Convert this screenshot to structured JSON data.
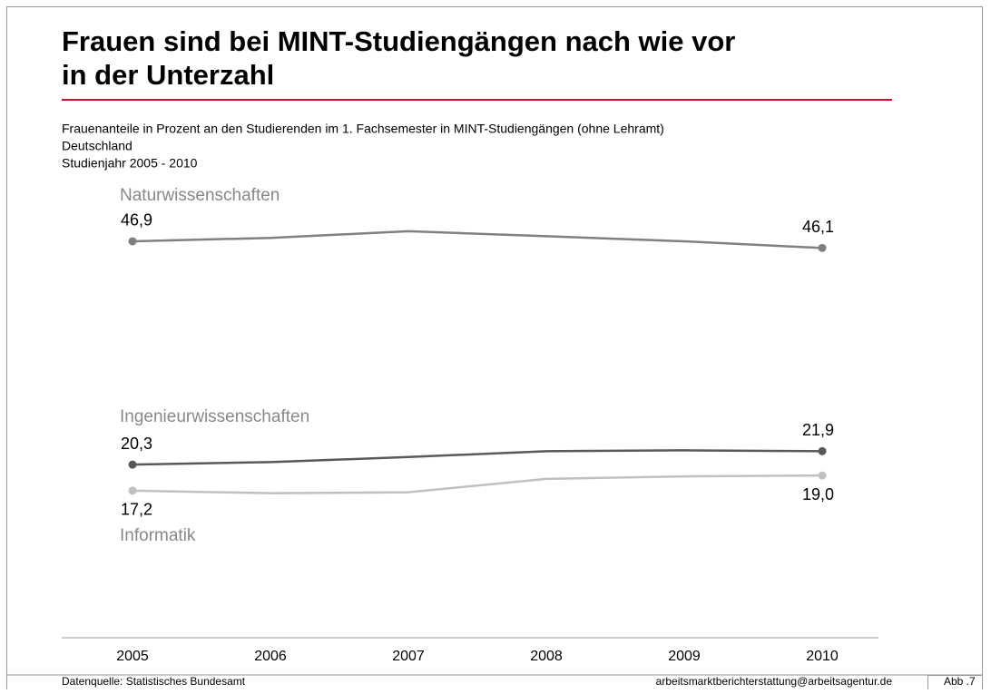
{
  "chart_data": {
    "type": "line",
    "title": [
      "Frauen sind bei MINT-Studiengängen nach wie vor",
      "in der Unterzahl"
    ],
    "subtitle": [
      "Frauenanteile  in Prozent  an den Studierenden im 1. Fachsemester in MINT-Studiengängen (ohne Lehramt)",
      "Deutschland",
      "Studienjahr 2005 - 2010"
    ],
    "categories": [
      "2005",
      "2006",
      "2007",
      "2008",
      "2009",
      "2010"
    ],
    "series": [
      {
        "name": "Naturwissenschaften",
        "color": "#808080",
        "values": [
          46.9,
          47.3,
          48.1,
          47.5,
          46.9,
          46.1
        ],
        "value_labels": [
          "46,9",
          null,
          null,
          null,
          null,
          "46,1"
        ]
      },
      {
        "name": "Ingenieurwissenschaften",
        "color": "#595959",
        "values": [
          20.3,
          20.6,
          21.2,
          21.9,
          22.0,
          21.9
        ],
        "value_labels": [
          "20,3",
          null,
          null,
          null,
          null,
          "21,9"
        ]
      },
      {
        "name": "Informatik",
        "color": "#c0c0c0",
        "values": [
          17.2,
          16.9,
          17.0,
          18.6,
          18.9,
          19.0
        ],
        "value_labels": [
          "17,2",
          null,
          null,
          null,
          null,
          "19,0"
        ]
      }
    ],
    "ylim": [
      0,
      55
    ],
    "source": "Datenquelle: Statistisches Bundesamt",
    "contact": "arbeitsmarktberichterstattung@arbeitsagentur.de",
    "figure_number": "Abb .7"
  }
}
